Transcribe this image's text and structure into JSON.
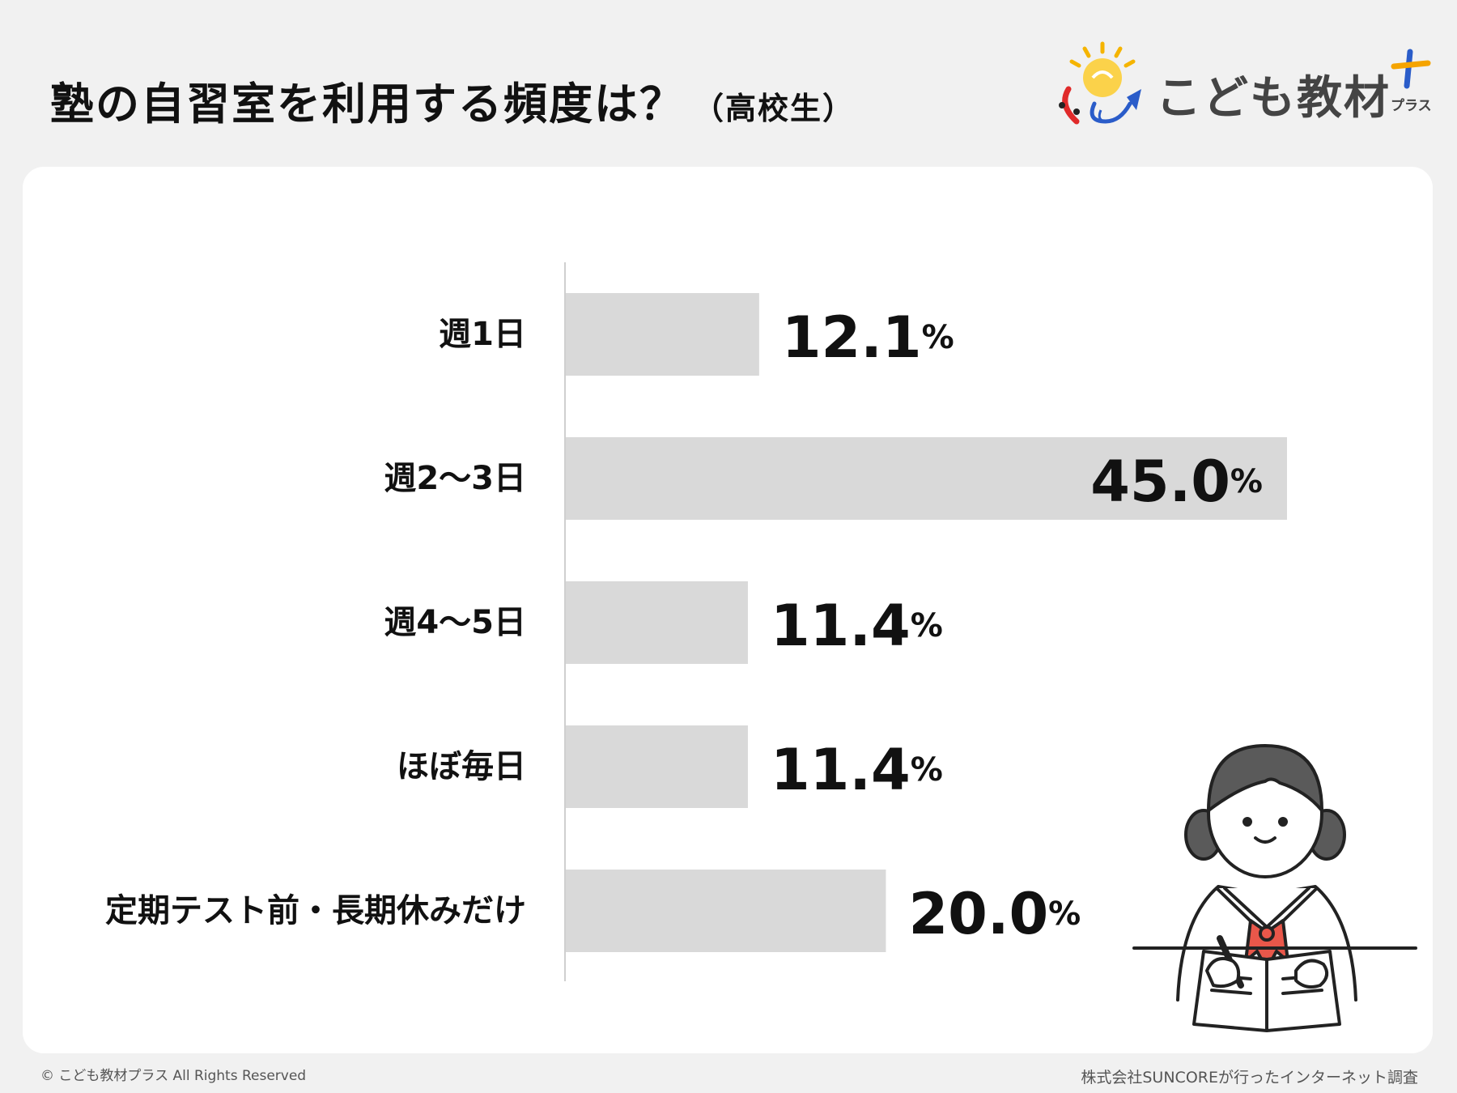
{
  "header": {
    "title": "塾の自習室を利用する頻度は？",
    "subtitle": "（高校生）"
  },
  "logo": {
    "name": "こども教材",
    "sub": "プラス"
  },
  "footer": {
    "copyright": "© こども教材プラス All Rights Reserved",
    "source": "株式会社SUNCOREが行ったインターネット調査"
  },
  "colors": {
    "bar": "#d9d9d9",
    "axis": "#cfcfcf",
    "page_bg": "#f1f1f1",
    "card_bg": "#ffffff",
    "text": "#111111"
  },
  "illustration": "student-studying-illustration",
  "chart_data": {
    "type": "bar",
    "orientation": "horizontal",
    "categories": [
      "週1日",
      "週2〜3日",
      "週4〜5日",
      "ほぼ毎日",
      "定期テスト前・長期休みだけ"
    ],
    "values": [
      12.1,
      45.0,
      11.4,
      11.4,
      20.0
    ],
    "value_labels": [
      "12.1",
      "45.0",
      "11.4",
      "11.4",
      "20.0"
    ],
    "unit": "%",
    "xlim": [
      0,
      45.0
    ],
    "grid": false,
    "legend": "none"
  }
}
